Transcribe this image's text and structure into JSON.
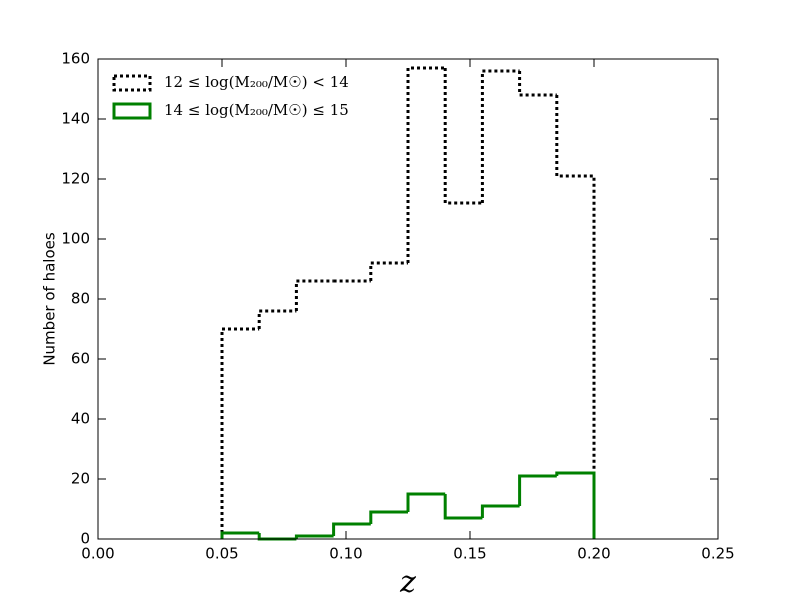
{
  "chart_data": {
    "type": "histogram",
    "xlabel": "z",
    "ylabel": "Number of haloes",
    "bins": [
      0.05,
      0.065,
      0.08,
      0.095,
      0.11,
      0.125,
      0.14,
      0.155,
      0.17,
      0.185,
      0.2
    ],
    "series": [
      {
        "name": "12 ≤ log(M₂₀₀/M☉) < 14",
        "color": "#000000",
        "linestyle": "dotted",
        "values": [
          70,
          76,
          86,
          86,
          92,
          157,
          112,
          156,
          148,
          121
        ]
      },
      {
        "name": "14 ≤ log(M₂₀₀/M☉) ≤ 15",
        "color": "#008000",
        "linestyle": "solid",
        "values": [
          2,
          0,
          1,
          5,
          9,
          15,
          7,
          11,
          21,
          22
        ]
      }
    ],
    "xlim": [
      0,
      0.25
    ],
    "xticks": [
      {
        "value": 0,
        "label": "0.00"
      },
      0.05,
      {
        "value": 0.1,
        "label": "0.10"
      },
      0.15,
      {
        "value": 0.2,
        "label": "0.20"
      },
      0.25
    ],
    "ylim": [
      0,
      160
    ],
    "yticks": [
      0,
      20,
      40,
      60,
      80,
      100,
      120,
      140,
      160
    ],
    "legend": "upper left",
    "grid": false
  }
}
